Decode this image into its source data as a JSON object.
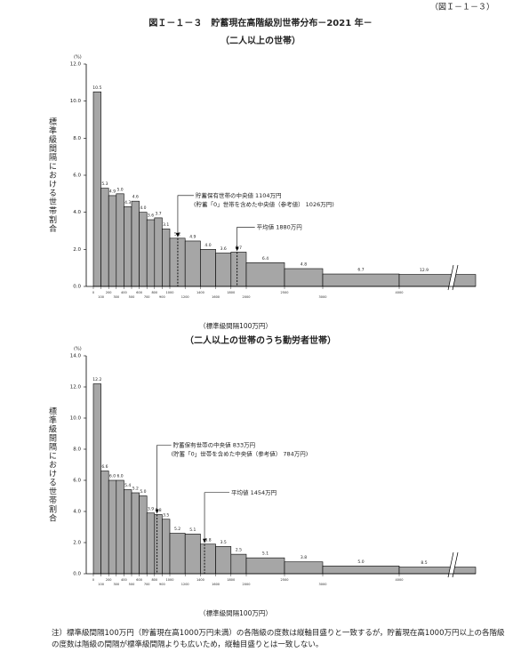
{
  "figure_ref": "（図Ｉ－１－３）",
  "title": "図Ｉ－１－３　貯蓄現在高階級別世帯分布－2021 年－",
  "footnote": "注）標準級間隔100万円（貯蓄現在高1000万円未満）の各階級の度数は縦軸目盛りと一致するが，貯蓄現在高1000万円以上の各階級の度数は階級の間隔が標準級間隔よりも広いため，縦軸目盛りとは一致しない。",
  "chart_data": [
    {
      "type": "histogram",
      "subtitle": "（二人以上の世帯）",
      "y_label": "標準級間隔における世帯割合",
      "y_unit": "(%)",
      "x_label": "（標準級間隔100万円）",
      "color": "#a6a6a6",
      "bins": [
        0,
        100,
        200,
        300,
        400,
        500,
        600,
        700,
        800,
        900,
        1000,
        1200,
        1400,
        1600,
        1800,
        2000,
        2500,
        3000,
        4000,
        null
      ],
      "values": [
        10.5,
        5.3,
        4.9,
        5.0,
        4.3,
        4.6,
        4.0,
        3.6,
        3.7,
        3.1,
        5.2,
        4.9,
        4.0,
        3.6,
        3.7,
        6.4,
        4.8,
        6.7,
        12.9
      ],
      "value_labels": [
        "10.5",
        "5.3",
        "4.9",
        "5.0",
        "4.3",
        "4.6",
        "4.0",
        "3.6",
        "3.7",
        "3.1",
        "5.2",
        "4.9",
        "4.0",
        "3.6",
        "3.7",
        "6.4",
        "4.8",
        "6.7",
        "12.9"
      ],
      "ylim": [
        0,
        12
      ],
      "yticks": [
        {
          "value": 0,
          "label": "0.0"
        },
        {
          "value": 2,
          "label": "2.0"
        },
        {
          "value": 4,
          "label": "4.0"
        },
        {
          "value": 6,
          "label": "6.0"
        },
        {
          "value": 8,
          "label": "8.0"
        },
        {
          "value": 10,
          "label": "10.0"
        },
        {
          "value": 12,
          "label": "12.0"
        }
      ],
      "annotations": [
        {
          "x": 1104,
          "label": "貯蓄保有世帯の中央値 1104万円",
          "sublabel": "(貯蓄「0」世帯を含めた中央値（参考値） 1026万円)"
        },
        {
          "x": 1880,
          "label": "平均値 1880万円"
        }
      ]
    },
    {
      "type": "histogram",
      "subtitle": "（二人以上の世帯のうち勤労者世帯）",
      "y_label": "標準級間隔における世帯割合",
      "y_unit": "(%)",
      "x_label": "（標準級間隔100万円）",
      "color": "#a6a6a6",
      "bins": [
        0,
        100,
        200,
        300,
        400,
        500,
        600,
        700,
        800,
        900,
        1000,
        1200,
        1400,
        1600,
        1800,
        2000,
        2500,
        3000,
        4000,
        null
      ],
      "values": [
        12.2,
        6.6,
        6.0,
        6.0,
        5.4,
        5.2,
        5.0,
        3.9,
        3.8,
        3.5,
        5.2,
        5.1,
        3.8,
        3.5,
        2.5,
        5.1,
        3.8,
        5.0,
        8.5
      ],
      "value_labels": [
        "12.2",
        "6.6",
        "6.0",
        "6.0",
        "5.4",
        "5.2",
        "5.0",
        "3.9",
        "3.8",
        "3.5",
        "5.2",
        "5.1",
        "3.8",
        "3.5",
        "2.5",
        "5.1",
        "3.8",
        "5.0",
        "8.5"
      ],
      "ylim": [
        0,
        14
      ],
      "yticks": [
        {
          "value": 0,
          "label": "0.0"
        },
        {
          "value": 2,
          "label": "2.0"
        },
        {
          "value": 4,
          "label": "4.0"
        },
        {
          "value": 6,
          "label": "6.0"
        },
        {
          "value": 8,
          "label": "8.0"
        },
        {
          "value": 10,
          "label": "10.0"
        },
        {
          "value": 12,
          "label": "12.0"
        },
        {
          "value": 14,
          "label": "14.0"
        }
      ],
      "annotations": [
        {
          "x": 833,
          "label": "貯蓄保有世帯の中央値 833万円",
          "sublabel": "(貯蓄「0」世帯を含めた中央値（参考値） 784万円)"
        },
        {
          "x": 1454,
          "label": "平均値 1454万円"
        }
      ]
    }
  ]
}
